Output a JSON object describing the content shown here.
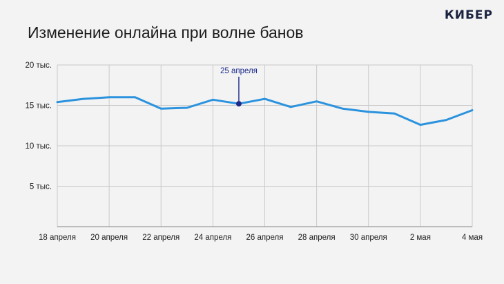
{
  "brand": {
    "logo_text": "КИБЕР"
  },
  "chart_data": {
    "type": "line",
    "title": "Изменение онлайна при волне банов",
    "xlabel": "",
    "ylabel": "",
    "ylim": [
      0,
      20000
    ],
    "grid": true,
    "x_index_range": [
      0,
      16
    ],
    "y_ticks": [
      {
        "value": 20000,
        "label": "20 тыс."
      },
      {
        "value": 15000,
        "label": "15 тыс."
      },
      {
        "value": 10000,
        "label": "10 тыс."
      },
      {
        "value": 5000,
        "label": "5 тыс."
      }
    ],
    "x_ticks": [
      {
        "index": 0,
        "label": "18 апреля"
      },
      {
        "index": 2,
        "label": "20 апреля"
      },
      {
        "index": 4,
        "label": "22 апреля"
      },
      {
        "index": 6,
        "label": "24 апреля"
      },
      {
        "index": 8,
        "label": "26 апреля"
      },
      {
        "index": 10,
        "label": "28 апреля"
      },
      {
        "index": 12,
        "label": "30 апреля"
      },
      {
        "index": 14,
        "label": "2 мая"
      },
      {
        "index": 16,
        "label": "4 мая"
      }
    ],
    "series": [
      {
        "color": "#2b92de",
        "points": [
          {
            "x": 0,
            "y": 15400
          },
          {
            "x": 1,
            "y": 15800
          },
          {
            "x": 2,
            "y": 16000
          },
          {
            "x": 3,
            "y": 16000
          },
          {
            "x": 4,
            "y": 14600
          },
          {
            "x": 5,
            "y": 14700
          },
          {
            "x": 6,
            "y": 15700
          },
          {
            "x": 7,
            "y": 15200
          },
          {
            "x": 8,
            "y": 15800
          },
          {
            "x": 9,
            "y": 14800
          },
          {
            "x": 10,
            "y": 15500
          },
          {
            "x": 11,
            "y": 14600
          },
          {
            "x": 12,
            "y": 14200
          },
          {
            "x": 13,
            "y": 14000
          },
          {
            "x": 14,
            "y": 12600
          },
          {
            "x": 15,
            "y": 13200
          },
          {
            "x": 16,
            "y": 14400
          }
        ]
      }
    ],
    "annotations": [
      {
        "x": 7,
        "y": 15200,
        "label": "25 апреля",
        "color": "#1c2a8a"
      }
    ]
  }
}
